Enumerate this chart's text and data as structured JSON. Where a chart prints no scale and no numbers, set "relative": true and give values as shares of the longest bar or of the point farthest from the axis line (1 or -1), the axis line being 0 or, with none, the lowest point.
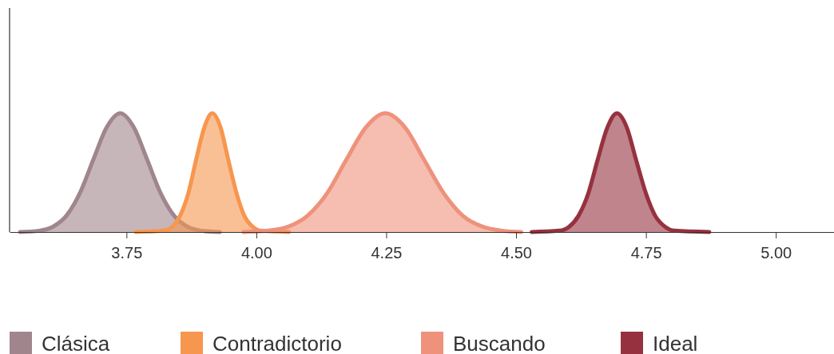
{
  "chart_data": {
    "type": "area",
    "relative": true,
    "legend": "bottom",
    "marker": "none",
    "xlim": [
      3.525,
      5.112
    ],
    "xticks": [
      3.75,
      {
        "value": 4,
        "label": "4.00"
      },
      4.25,
      {
        "value": 4.5,
        "label": "4.50"
      },
      4.75,
      {
        "value": 5,
        "label": "5.00"
      }
    ],
    "series": [
      {
        "name": "Clásica",
        "color": "#a0868c",
        "x": [
          3.545,
          3.582,
          3.608,
          3.634,
          3.66,
          3.686,
          3.712,
          3.738,
          3.764,
          3.79,
          3.816,
          3.842,
          3.868,
          3.894,
          3.93
        ],
        "values": [
          0,
          0.011,
          0.044,
          0.135,
          0.325,
          0.607,
          0.882,
          1,
          0.882,
          0.607,
          0.325,
          0.135,
          0.044,
          0.011,
          0
        ]
      },
      {
        "name": "Contradictorio",
        "color": "#f7964f",
        "x": [
          3.768,
          3.822,
          3.838,
          3.853,
          3.869,
          3.884,
          3.9,
          3.915,
          3.931,
          3.946,
          3.962,
          3.977,
          3.993,
          4.008,
          4.063
        ],
        "values": [
          0,
          0.011,
          0.044,
          0.135,
          0.325,
          0.607,
          0.882,
          1,
          0.882,
          0.607,
          0.325,
          0.135,
          0.044,
          0.011,
          0
        ]
      },
      {
        "name": "Buscando",
        "color": "#ee927c",
        "x": [
          3.975,
          4.023,
          4.061,
          4.098,
          4.136,
          4.173,
          4.211,
          4.248,
          4.286,
          4.323,
          4.361,
          4.398,
          4.436,
          4.473,
          4.51
        ],
        "values": [
          0,
          0.011,
          0.044,
          0.135,
          0.325,
          0.607,
          0.882,
          1,
          0.882,
          0.607,
          0.325,
          0.135,
          0.044,
          0.011,
          0
        ]
      },
      {
        "name": "Ideal",
        "color": "#96323f",
        "x": [
          4.53,
          4.583,
          4.602,
          4.62,
          4.639,
          4.657,
          4.676,
          4.694,
          4.713,
          4.731,
          4.75,
          4.768,
          4.787,
          4.805,
          4.872
        ],
        "values": [
          0,
          0.011,
          0.044,
          0.135,
          0.325,
          0.607,
          0.882,
          1,
          0.882,
          0.607,
          0.325,
          0.135,
          0.044,
          0.011,
          0
        ]
      }
    ]
  }
}
